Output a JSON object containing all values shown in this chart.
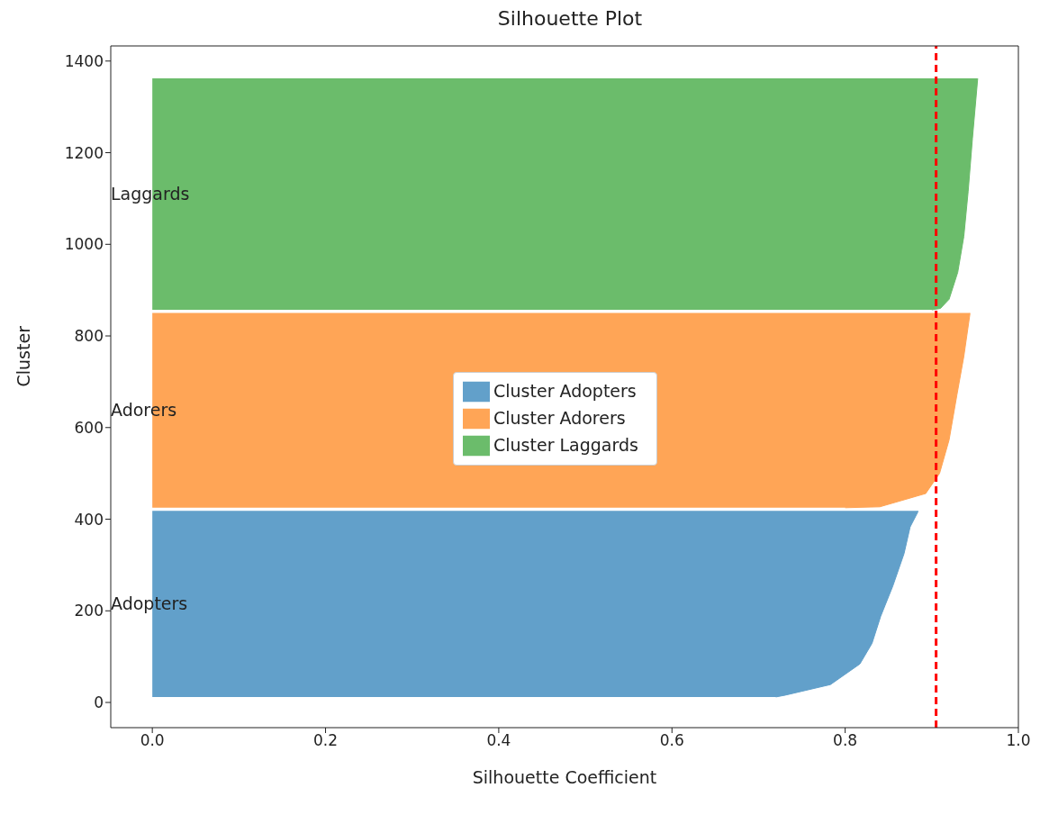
{
  "chart_data": {
    "type": "area",
    "orientation": "horizontal",
    "title": "Silhouette Plot",
    "xlabel": "Silhouette Coefficient",
    "ylabel": "Cluster",
    "xlim": [
      -0.048,
      1.0
    ],
    "xticks": [
      {
        "value": 0,
        "label": "0.0"
      },
      0.2,
      0.4,
      0.6,
      0.8,
      {
        "value": 1,
        "label": "1.0"
      }
    ],
    "ylim": [
      -55,
      1433
    ],
    "yticks": [
      0,
      200,
      400,
      600,
      800,
      1000,
      1200,
      1400
    ],
    "series": [
      {
        "name": "Cluster Adopters",
        "color": "#62a0ca",
        "x": [
          12,
          16,
          39,
          84,
          129,
          188,
          254,
          325,
          383,
          416,
          418
        ],
        "values": [
          0.72,
          0.731,
          0.783,
          0.817,
          0.831,
          0.841,
          0.855,
          0.868,
          0.875,
          0.884,
          0.884
        ]
      },
      {
        "name": "Cluster Adorers",
        "color": "#ffa556",
        "x": [
          425,
          427,
          456,
          500,
          573,
          671,
          755,
          847,
          850
        ],
        "values": [
          0.8,
          0.84,
          0.893,
          0.909,
          0.92,
          0.929,
          0.937,
          0.944,
          0.944
        ]
      },
      {
        "name": "Cluster Laggards",
        "color": "#6bbc6b",
        "x": [
          857,
          860,
          880,
          939,
          1017,
          1115,
          1232,
          1361,
          1362
        ],
        "values": [
          0.9,
          0.91,
          0.92,
          0.93,
          0.937,
          0.942,
          0.947,
          0.953,
          0.953
        ]
      }
    ],
    "ref_lines": [
      {
        "axis": "x",
        "value": 0.905,
        "color": "#ff0000",
        "line_style": "dashed"
      }
    ],
    "annotations": [
      "Adopters",
      "Adorers",
      "Laggards"
    ],
    "legend": "center"
  }
}
